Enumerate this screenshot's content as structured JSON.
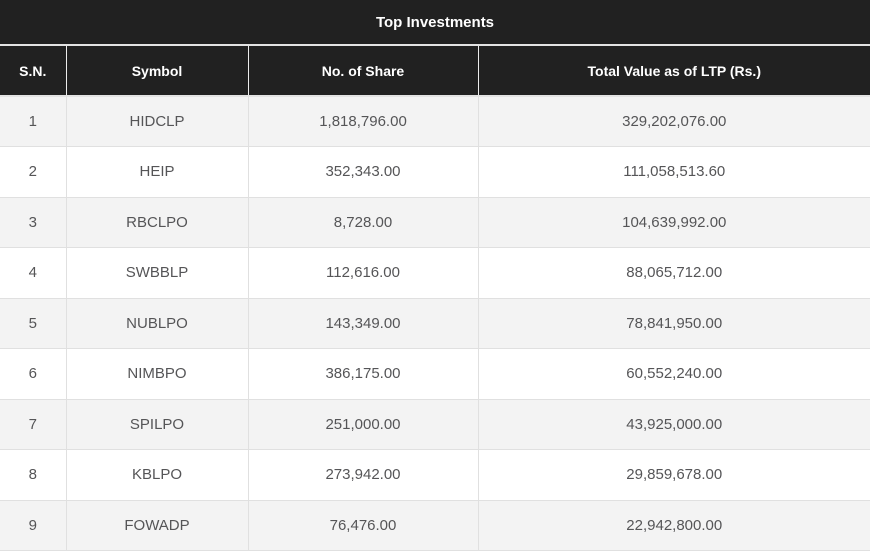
{
  "table": {
    "title": "Top Investments",
    "columns": [
      "S.N.",
      "Symbol",
      "No. of Share",
      "Total Value as of LTP (Rs.)"
    ],
    "rows": [
      {
        "sn": "1",
        "symbol": "HIDCLP",
        "shares": "1,818,796.00",
        "value": "329,202,076.00"
      },
      {
        "sn": "2",
        "symbol": "HEIP",
        "shares": "352,343.00",
        "value": "111,058,513.60"
      },
      {
        "sn": "3",
        "symbol": "RBCLPO",
        "shares": "8,728.00",
        "value": "104,639,992.00"
      },
      {
        "sn": "4",
        "symbol": "SWBBLP",
        "shares": "112,616.00",
        "value": "88,065,712.00"
      },
      {
        "sn": "5",
        "symbol": "NUBLPO",
        "shares": "143,349.00",
        "value": "78,841,950.00"
      },
      {
        "sn": "6",
        "symbol": "NIMBPO",
        "shares": "386,175.00",
        "value": "60,552,240.00"
      },
      {
        "sn": "7",
        "symbol": "SPILPO",
        "shares": "251,000.00",
        "value": "43,925,000.00"
      },
      {
        "sn": "8",
        "symbol": "KBLPO",
        "shares": "273,942.00",
        "value": "29,859,678.00"
      },
      {
        "sn": "9",
        "symbol": "FOWADP",
        "shares": "76,476.00",
        "value": "22,942,800.00"
      }
    ],
    "colors": {
      "header_bg": "#212121",
      "header_text": "#ffffff",
      "row_alt_bg": "#f3f3f3",
      "row_bg": "#ffffff",
      "body_text": "#555557",
      "divider": "#e0e0e0"
    }
  }
}
